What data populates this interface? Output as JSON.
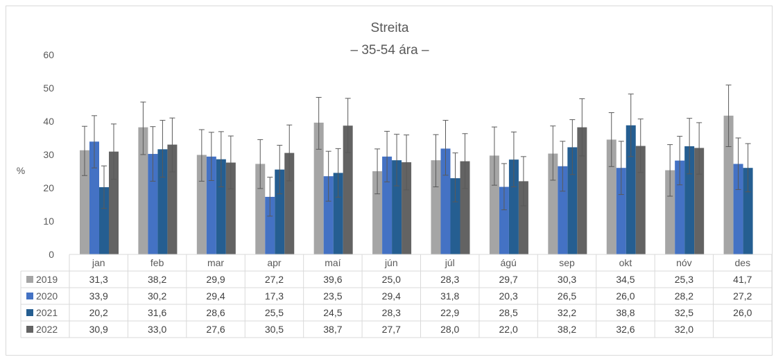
{
  "chart_data": {
    "type": "bar",
    "title": "Streita",
    "subtitle": "– 35-54 ára –",
    "ylabel": "%",
    "ylim": [
      0,
      60
    ],
    "yticks": [
      0,
      10,
      20,
      30,
      40,
      50,
      60
    ],
    "grid": false,
    "legend": "data-table",
    "categories": [
      "jan",
      "feb",
      "mar",
      "apr",
      "maí",
      "jún",
      "júl",
      "ágú",
      "sep",
      "okt",
      "nóv",
      "des"
    ],
    "series": [
      {
        "name": "2019",
        "color": "#a5a5a5",
        "values": [
          31.3,
          38.2,
          29.9,
          27.2,
          39.6,
          25.0,
          28.3,
          29.7,
          30.3,
          34.5,
          25.3,
          41.7
        ],
        "error_low": [
          23.7,
          30.0,
          22.0,
          19.8,
          31.6,
          18.2,
          20.3,
          20.8,
          22.3,
          26.4,
          17.5,
          32.4
        ],
        "error_high": [
          38.5,
          45.8,
          37.5,
          34.5,
          47.2,
          31.7,
          36.0,
          38.3,
          38.6,
          42.6,
          33.0,
          50.9
        ]
      },
      {
        "name": "2020",
        "color": "#4472c4",
        "values": [
          33.9,
          30.2,
          29.4,
          17.3,
          23.5,
          29.4,
          31.8,
          20.3,
          26.5,
          26.0,
          28.2,
          27.2
        ],
        "error_low": [
          26.0,
          22.0,
          22.2,
          11.5,
          16.0,
          21.8,
          23.8,
          13.4,
          19.0,
          18.0,
          20.9,
          19.5
        ],
        "error_high": [
          41.7,
          38.4,
          36.7,
          23.2,
          31.0,
          37.0,
          40.3,
          27.3,
          34.0,
          34.0,
          35.5,
          35.0
        ]
      },
      {
        "name": "2021",
        "color": "#255e91",
        "values": [
          20.2,
          31.6,
          28.6,
          25.5,
          24.5,
          28.3,
          22.9,
          28.5,
          32.2,
          38.8,
          32.5,
          26.0
        ],
        "error_low": [
          13.8,
          23.2,
          20.3,
          18.2,
          17.2,
          20.6,
          15.8,
          20.3,
          24.0,
          29.4,
          24.2,
          18.8
        ],
        "error_high": [
          26.6,
          40.3,
          36.9,
          32.8,
          31.8,
          36.1,
          30.5,
          36.8,
          40.5,
          48.2,
          40.9,
          33.3
        ]
      },
      {
        "name": "2022",
        "color": "#636363",
        "values": [
          30.9,
          33.0,
          27.6,
          30.5,
          38.7,
          27.7,
          28.0,
          22.0,
          38.2,
          32.6,
          32.0,
          null
        ],
        "error_low": [
          22.6,
          24.8,
          19.7,
          22.1,
          30.6,
          19.4,
          19.8,
          14.6,
          29.6,
          24.6,
          24.1,
          null
        ],
        "error_high": [
          39.2,
          41.0,
          35.6,
          38.9,
          46.9,
          35.9,
          36.3,
          29.4,
          46.8,
          40.7,
          39.6,
          null
        ]
      }
    ]
  }
}
